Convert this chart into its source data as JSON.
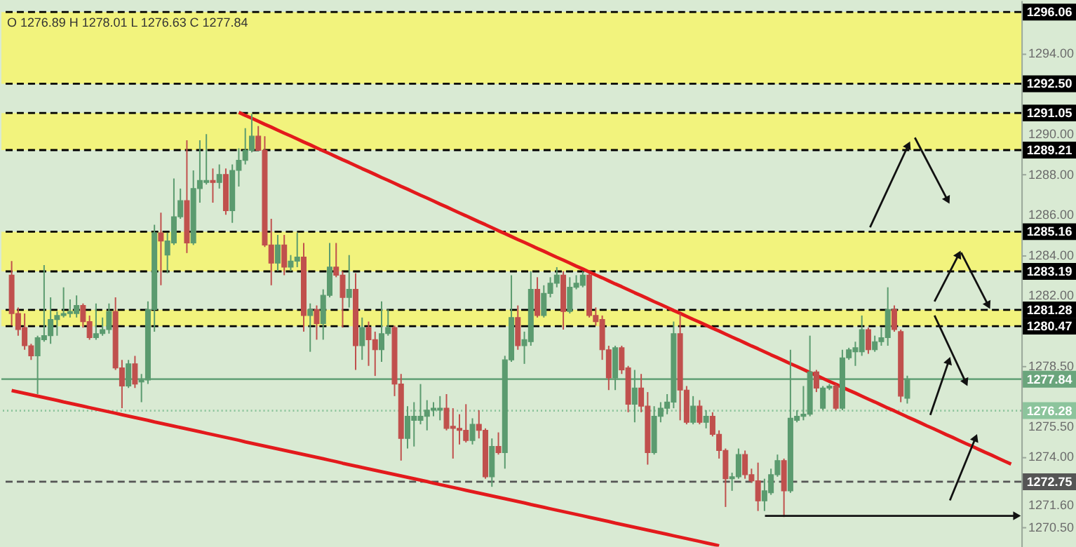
{
  "chart_data": {
    "type": "candlestick",
    "categories": [
      null,
      null,
      null,
      null,
      null,
      null,
      null,
      null,
      null,
      null,
      null,
      null,
      null,
      null,
      null,
      null,
      null,
      null,
      null,
      null,
      null,
      null,
      null,
      null,
      null,
      null,
      null,
      null,
      null,
      null,
      null,
      null,
      null,
      null,
      null,
      null,
      null,
      null,
      null,
      null,
      null,
      null,
      null,
      null,
      null,
      null,
      null,
      null,
      null,
      null,
      null,
      null,
      null,
      null,
      null,
      null,
      null,
      null,
      null,
      null,
      null,
      null,
      null,
      null,
      null,
      null,
      null,
      null,
      null,
      null,
      null,
      null,
      null,
      null,
      null,
      null,
      null,
      null,
      null,
      null,
      null,
      null,
      null,
      null,
      null,
      null,
      null,
      null,
      null,
      null,
      null,
      null,
      null,
      null,
      null,
      null,
      null,
      null,
      null,
      null,
      null,
      null,
      null,
      null,
      null,
      null,
      null,
      null,
      null,
      null,
      null,
      null,
      null,
      null,
      null,
      null,
      null,
      null,
      null,
      null,
      null,
      null,
      null,
      null,
      null,
      null,
      null,
      null,
      null,
      null,
      null,
      null,
      null,
      null,
      null,
      null,
      null,
      null,
      null,
      null,
      null,
      null,
      null,
      null,
      null,
      null,
      null,
      null,
      null,
      null,
      null,
      null,
      null,
      null,
      null
    ],
    "series": [
      {
        "ohlc": [
          [
            1283.0,
            1283.7,
            1280.5,
            1281.1
          ],
          [
            1281.1,
            1281.4,
            1280.0,
            1280.3
          ],
          [
            1280.4,
            1281.1,
            1279.3,
            1279.5
          ],
          [
            1279.5,
            1279.6,
            1278.8,
            1279.0
          ],
          [
            1279.0,
            1280.0,
            1277.1,
            1279.9
          ],
          [
            1279.8,
            1283.5,
            1279.7,
            1280.0
          ],
          [
            1280.0,
            1281.9,
            1279.6,
            1280.8
          ],
          [
            1280.8,
            1281.2,
            1280.0,
            1281.0
          ],
          [
            1281.0,
            1282.4,
            1280.9,
            1281.1
          ],
          [
            1281.1,
            1281.8,
            1280.9,
            1281.2
          ],
          [
            1281.1,
            1282.0,
            1280.9,
            1281.5
          ],
          [
            1281.5,
            1281.6,
            1280.4,
            1280.7
          ],
          [
            1280.7,
            1281.0,
            1279.8,
            1279.9
          ],
          [
            1279.9,
            1281.6,
            1279.8,
            1280.1
          ],
          [
            1280.1,
            1280.9,
            1280.0,
            1280.3
          ],
          [
            1280.3,
            1281.6,
            1280.1,
            1281.2
          ],
          [
            1281.2,
            1281.9,
            1278.3,
            1278.4
          ],
          [
            1278.4,
            1278.8,
            1276.4,
            1277.5
          ],
          [
            1277.5,
            1278.8,
            1277.4,
            1278.6
          ],
          [
            1278.6,
            1279.0,
            1277.4,
            1277.6
          ],
          [
            1277.7,
            1278.1,
            1276.7,
            1277.8
          ],
          [
            1277.8,
            1281.7,
            1277.6,
            1281.3
          ],
          [
            1281.3,
            1285.5,
            1280.2,
            1285.1
          ],
          [
            1285.1,
            1286.1,
            1282.5,
            1284.7
          ],
          [
            1284.0,
            1285.1,
            1283.1,
            1284.7
          ],
          [
            1284.6,
            1287.8,
            1284.5,
            1285.9
          ],
          [
            1285.9,
            1287.3,
            1285.8,
            1286.7
          ],
          [
            1286.7,
            1289.7,
            1284.1,
            1284.6
          ],
          [
            1284.6,
            1288.2,
            1284.5,
            1287.3
          ],
          [
            1287.3,
            1289.7,
            1286.6,
            1287.7
          ],
          [
            1287.6,
            1290.0,
            1287.5,
            1287.7
          ],
          [
            1287.7,
            1288.3,
            1286.6,
            1287.6
          ],
          [
            1287.6,
            1288.5,
            1287.3,
            1288.0
          ],
          [
            1288.0,
            1288.3,
            1286.0,
            1286.2
          ],
          [
            1286.2,
            1288.5,
            1285.6,
            1288.2
          ],
          [
            1288.2,
            1289.3,
            1287.4,
            1288.7
          ],
          [
            1288.7,
            1290.3,
            1288.5,
            1289.2
          ],
          [
            1289.2,
            1291.0,
            1289.1,
            1289.9
          ],
          [
            1289.9,
            1290.4,
            1289.2,
            1289.2
          ],
          [
            1289.2,
            1289.9,
            1284.4,
            1284.5
          ],
          [
            1284.5,
            1285.8,
            1282.5,
            1283.6
          ],
          [
            1283.6,
            1285.0,
            1283.2,
            1284.5
          ],
          [
            1284.5,
            1285.0,
            1283.0,
            1283.4
          ],
          [
            1283.4,
            1284.0,
            1283.2,
            1283.7
          ],
          [
            1283.7,
            1285.1,
            1283.4,
            1283.9
          ],
          [
            1283.9,
            1284.6,
            1280.2,
            1281.0
          ],
          [
            1281.0,
            1281.6,
            1279.2,
            1281.3
          ],
          [
            1281.3,
            1281.5,
            1279.8,
            1280.6
          ],
          [
            1280.6,
            1282.3,
            1279.8,
            1282.0
          ],
          [
            1282.0,
            1284.6,
            1281.9,
            1283.4
          ],
          [
            1283.4,
            1284.6,
            1282.9,
            1283.0
          ],
          [
            1283.0,
            1283.2,
            1280.4,
            1281.9
          ],
          [
            1281.9,
            1284.0,
            1281.4,
            1282.3
          ],
          [
            1282.3,
            1283.1,
            1278.3,
            1279.5
          ],
          [
            1279.5,
            1280.9,
            1278.8,
            1280.4
          ],
          [
            1280.4,
            1280.7,
            1278.5,
            1279.8
          ],
          [
            1279.8,
            1280.2,
            1278.0,
            1279.3
          ],
          [
            1279.3,
            1281.7,
            1278.7,
            1280.1
          ],
          [
            1280.1,
            1281.3,
            1280.0,
            1280.4
          ],
          [
            1280.4,
            1280.5,
            1277.0,
            1277.6
          ],
          [
            1277.6,
            1278.1,
            1273.8,
            1274.9
          ],
          [
            1274.9,
            1276.5,
            1274.4,
            1276.0
          ],
          [
            1275.8,
            1276.7,
            1274.5,
            1276.0
          ],
          [
            1275.8,
            1277.6,
            1275.6,
            1276.0
          ],
          [
            1276.0,
            1276.8,
            1275.3,
            1276.3
          ],
          [
            1276.3,
            1276.7,
            1276.0,
            1276.4
          ],
          [
            1276.3,
            1277.0,
            1275.8,
            1276.4
          ],
          [
            1276.4,
            1277.1,
            1275.3,
            1275.4
          ],
          [
            1275.5,
            1276.4,
            1273.9,
            1275.4
          ],
          [
            1275.4,
            1276.1,
            1274.6,
            1275.3
          ],
          [
            1275.3,
            1276.6,
            1274.7,
            1274.8
          ],
          [
            1274.8,
            1275.9,
            1274.6,
            1275.6
          ],
          [
            1275.6,
            1276.3,
            1274.9,
            1275.3
          ],
          [
            1275.3,
            1275.4,
            1272.9,
            1273.0
          ],
          [
            1273.0,
            1274.9,
            1272.5,
            1274.5
          ],
          [
            1274.5,
            1275.2,
            1274.1,
            1274.2
          ],
          [
            1274.2,
            1279.0,
            1273.4,
            1278.8
          ],
          [
            1278.8,
            1283.0,
            1278.7,
            1280.9
          ],
          [
            1280.9,
            1281.5,
            1279.3,
            1279.5
          ],
          [
            1279.5,
            1280.2,
            1278.6,
            1279.8
          ],
          [
            1279.7,
            1283.2,
            1279.5,
            1282.3
          ],
          [
            1282.3,
            1282.9,
            1280.9,
            1281.0
          ],
          [
            1281.0,
            1282.5,
            1280.9,
            1282.1
          ],
          [
            1282.1,
            1282.9,
            1281.9,
            1282.6
          ],
          [
            1282.6,
            1283.4,
            1282.4,
            1283.0
          ],
          [
            1283.0,
            1283.2,
            1280.3,
            1281.2
          ],
          [
            1281.2,
            1282.9,
            1281.1,
            1282.4
          ],
          [
            1282.4,
            1283.0,
            1282.3,
            1282.6
          ],
          [
            1282.5,
            1283.2,
            1282.4,
            1283.0
          ],
          [
            1283.0,
            1283.1,
            1280.9,
            1281.0
          ],
          [
            1281.0,
            1281.4,
            1280.5,
            1280.7
          ],
          [
            1280.8,
            1281.0,
            1278.8,
            1279.3
          ],
          [
            1279.3,
            1279.5,
            1277.3,
            1277.9
          ],
          [
            1277.9,
            1279.5,
            1277.3,
            1279.4
          ],
          [
            1279.4,
            1279.5,
            1278.1,
            1278.3
          ],
          [
            1278.4,
            1278.5,
            1276.2,
            1276.6
          ],
          [
            1276.6,
            1278.3,
            1275.7,
            1277.4
          ],
          [
            1277.4,
            1278.1,
            1276.2,
            1276.5
          ],
          [
            1276.5,
            1277.2,
            1273.6,
            1274.2
          ],
          [
            1274.2,
            1276.5,
            1274.1,
            1276.0
          ],
          [
            1276.0,
            1276.7,
            1275.7,
            1276.4
          ],
          [
            1276.4,
            1277.1,
            1276.1,
            1276.7
          ],
          [
            1276.7,
            1280.7,
            1276.4,
            1280.1
          ],
          [
            1280.1,
            1281.1,
            1275.8,
            1277.3
          ],
          [
            1277.3,
            1277.5,
            1275.6,
            1275.7
          ],
          [
            1275.7,
            1277.0,
            1275.6,
            1276.5
          ],
          [
            1276.5,
            1276.8,
            1275.6,
            1275.7
          ],
          [
            1275.7,
            1276.3,
            1275.4,
            1276.0
          ],
          [
            1276.0,
            1276.2,
            1275.0,
            1275.1
          ],
          [
            1275.1,
            1275.3,
            1273.9,
            1274.3
          ],
          [
            1274.3,
            1274.4,
            1271.5,
            1272.9
          ],
          [
            1272.9,
            1273.2,
            1272.3,
            1273.0
          ],
          [
            1273.0,
            1274.4,
            1272.9,
            1274.1
          ],
          [
            1274.1,
            1274.3,
            1272.9,
            1273.1
          ],
          [
            1273.1,
            1273.4,
            1272.7,
            1272.8
          ],
          [
            1272.8,
            1273.7,
            1271.3,
            1271.8
          ],
          [
            1271.8,
            1272.9,
            1271.3,
            1272.3
          ],
          [
            1272.2,
            1273.4,
            1272.1,
            1273.1
          ],
          [
            1273.1,
            1274.1,
            1273.0,
            1273.8
          ],
          [
            1273.8,
            1273.9,
            1271.0,
            1272.3
          ],
          [
            1272.3,
            1279.3,
            1272.2,
            1275.9
          ],
          [
            1275.8,
            1276.3,
            1275.7,
            1276.0
          ],
          [
            1276.0,
            1277.5,
            1275.8,
            1276.1
          ],
          [
            1276.1,
            1280.0,
            1276.0,
            1278.2
          ],
          [
            1278.2,
            1278.3,
            1277.2,
            1277.4
          ],
          [
            1276.4,
            1277.5,
            1276.3,
            1277.4
          ],
          [
            1277.4,
            1277.6,
            1277.3,
            1277.5
          ],
          [
            1277.5,
            1277.6,
            1276.3,
            1276.4
          ],
          [
            1276.4,
            1279.3,
            1276.3,
            1278.9
          ],
          [
            1278.9,
            1279.4,
            1278.8,
            1279.3
          ],
          [
            1279.2,
            1279.7,
            1278.5,
            1279.4
          ],
          [
            1279.2,
            1281.0,
            1279.0,
            1280.3
          ],
          [
            1280.3,
            1280.4,
            1279.1,
            1279.3
          ],
          [
            1279.3,
            1280.0,
            1279.2,
            1279.7
          ],
          [
            1279.7,
            1280.4,
            1279.5,
            1279.9
          ],
          [
            1279.9,
            1282.4,
            1279.5,
            1281.3
          ],
          [
            1281.3,
            1281.5,
            1280.2,
            1280.3
          ],
          [
            1280.2,
            1280.3,
            1276.7,
            1277.0
          ],
          [
            1276.89,
            1278.01,
            1276.63,
            1277.84
          ],
          null,
          null,
          null,
          null,
          null,
          null,
          null,
          null,
          null,
          null,
          null,
          null,
          null,
          null,
          null,
          null
        ],
        "colors": [
          "#c0504d",
          "#c0504d",
          "#c0504d",
          "#c0504d",
          "#5b9b6f",
          "#5b9b6f",
          "#5b9b6f",
          "#5b9b6f",
          "#5b9b6f",
          "#5b9b6f",
          "#5b9b6f",
          "#c0504d",
          "#c0504d",
          "#5b9b6f",
          "#5b9b6f",
          "#5b9b6f",
          "#c0504d",
          "#c0504d",
          "#5b9b6f",
          "#c0504d",
          "#5b9b6f",
          "#5b9b6f",
          "#5b9b6f",
          "#c0504d",
          "#5b9b6f",
          "#5b9b6f",
          "#5b9b6f",
          "#c0504d",
          "#5b9b6f",
          "#5b9b6f",
          "#5b9b6f",
          "#c0504d",
          "#5b9b6f",
          "#c0504d",
          "#5b9b6f",
          "#5b9b6f",
          "#5b9b6f",
          "#5b9b6f",
          "#c0504d",
          "#c0504d",
          "#c0504d",
          "#5b9b6f",
          "#c0504d",
          "#5b9b6f",
          "#5b9b6f",
          "#c0504d",
          "#5b9b6f",
          "#c0504d",
          "#5b9b6f",
          "#5b9b6f",
          "#c0504d",
          "#c0504d",
          "#5b9b6f",
          "#c0504d",
          "#5b9b6f",
          "#c0504d",
          "#c0504d",
          "#5b9b6f",
          "#5b9b6f",
          "#c0504d",
          "#c0504d",
          "#5b9b6f",
          "#5b9b6f",
          "#5b9b6f",
          "#5b9b6f",
          "#5b9b6f",
          "#5b9b6f",
          "#c0504d",
          "#c0504d",
          "#c0504d",
          "#c0504d",
          "#5b9b6f",
          "#c0504d",
          "#c0504d",
          "#5b9b6f",
          "#c0504d",
          "#5b9b6f",
          "#5b9b6f",
          "#c0504d",
          "#5b9b6f",
          "#5b9b6f",
          "#c0504d",
          "#5b9b6f",
          "#5b9b6f",
          "#5b9b6f",
          "#c0504d",
          "#5b9b6f",
          "#5b9b6f",
          "#5b9b6f",
          "#c0504d",
          "#c0504d",
          "#c0504d",
          "#c0504d",
          "#5b9b6f",
          "#c0504d",
          "#c0504d",
          "#5b9b6f",
          "#c0504d",
          "#c0504d",
          "#5b9b6f",
          "#5b9b6f",
          "#5b9b6f",
          "#5b9b6f",
          "#c0504d",
          "#c0504d",
          "#5b9b6f",
          "#c0504d",
          "#5b9b6f",
          "#c0504d",
          "#c0504d",
          "#c0504d",
          "#5b9b6f",
          "#5b9b6f",
          "#c0504d",
          "#c0504d",
          "#c0504d",
          "#5b9b6f",
          "#5b9b6f",
          "#5b9b6f",
          "#c0504d",
          "#5b9b6f",
          "#5b9b6f",
          "#5b9b6f",
          "#5b9b6f",
          "#c0504d",
          "#5b9b6f",
          "#5b9b6f",
          "#c0504d",
          "#5b9b6f",
          "#5b9b6f",
          "#5b9b6f",
          "#5b9b6f",
          "#c0504d",
          "#5b9b6f",
          "#5b9b6f",
          "#5b9b6f",
          "#c0504d",
          "#c0504d",
          "#5b9b6f",
          null,
          null,
          null,
          null,
          null,
          null,
          null,
          null,
          null,
          null,
          null,
          null,
          null,
          null,
          null,
          null
        ]
      },
      {
        "type": "line",
        "color": "#e31a1c",
        "values": [
          null,
          null,
          null,
          null,
          null,
          null,
          null,
          null,
          null,
          null,
          null,
          null,
          null,
          null,
          null,
          null,
          null,
          null,
          null,
          null,
          null,
          null,
          null,
          null,
          null,
          null,
          null,
          null,
          null,
          null,
          null,
          null,
          null,
          null,
          null,
          1291.08,
          1290.93,
          1290.79,
          1290.64,
          1290.49,
          1290.35,
          1290.2,
          1290.05,
          1289.91,
          1289.76,
          1289.61,
          1289.47,
          1289.32,
          1289.17,
          1289.03,
          1288.88,
          1288.73,
          1288.59,
          1288.44,
          1288.29,
          1288.15,
          1288.0,
          1287.85,
          1287.71,
          1287.56,
          1287.41,
          1287.27,
          1287.12,
          1286.97,
          1286.83,
          1286.68,
          1286.53,
          1286.39,
          1286.24,
          1286.09,
          1285.95,
          1285.8,
          1285.65,
          1285.51,
          1285.36,
          1285.21,
          1285.07,
          1284.92,
          1284.77,
          1284.63,
          1284.48,
          1284.33,
          1284.19,
          1284.04,
          1283.89,
          1283.75,
          1283.6,
          1283.45,
          1283.31,
          1283.16,
          1283.01,
          1282.87,
          1282.72,
          1282.57,
          1282.43,
          1282.28,
          1282.13,
          1281.99,
          1281.84,
          1281.69,
          1281.55,
          1281.4,
          1281.25,
          1281.11,
          1280.96,
          1280.81,
          1280.67,
          1280.52,
          1280.37,
          1280.23,
          1280.08,
          1279.93,
          1279.79,
          1279.64,
          1279.49,
          1279.35,
          1279.2,
          1279.05,
          1278.91,
          1278.76,
          1278.61,
          1278.47,
          1278.32,
          1278.17,
          1278.03,
          1277.88,
          1277.73,
          1277.59,
          1277.44,
          1277.29,
          1277.15,
          1277.0,
          1276.85,
          1276.71,
          1276.56,
          1276.41,
          1276.27,
          1276.12,
          1275.97,
          1275.83,
          1275.68,
          1275.53,
          1275.39,
          1275.24,
          1275.09,
          1274.95,
          1274.8,
          1274.65,
          1274.51,
          1274.36,
          1274.21,
          1274.07,
          1273.92,
          1273.77,
          1273.63
        ]
      },
      {
        "type": "line",
        "color": "#e31a1c",
        "values": [
          1277.28,
          1277.21,
          1277.14,
          1277.07,
          1277.0,
          1276.93,
          1276.86,
          1276.79,
          1276.71,
          1276.64,
          1276.57,
          1276.5,
          1276.43,
          1276.36,
          1276.29,
          1276.22,
          1276.15,
          1276.08,
          1276.01,
          1275.94,
          1275.87,
          1275.8,
          1275.72,
          1275.65,
          1275.58,
          1275.51,
          1275.44,
          1275.37,
          1275.3,
          1275.23,
          1275.16,
          1275.09,
          1275.02,
          1274.95,
          1274.88,
          1274.81,
          1274.73,
          1274.66,
          1274.59,
          1274.52,
          1274.45,
          1274.38,
          1274.31,
          1274.24,
          1274.17,
          1274.1,
          1274.03,
          1273.96,
          1273.89,
          1273.82,
          1273.75,
          1273.67,
          1273.6,
          1273.53,
          1273.46,
          1273.39,
          1273.32,
          1273.25,
          1273.18,
          1273.11,
          1273.04,
          1272.97,
          1272.9,
          1272.83,
          1272.76,
          1272.68,
          1272.61,
          1272.54,
          1272.47,
          1272.4,
          1272.33,
          1272.26,
          1272.19,
          1272.12,
          1272.05,
          1271.98,
          1271.91,
          1271.84,
          1271.77,
          1271.7,
          1271.62,
          1271.55,
          1271.48,
          1271.41,
          1271.34,
          1271.27,
          1271.2,
          1271.13,
          1271.06,
          1270.99,
          1270.92,
          1270.85,
          1270.78,
          1270.7,
          1270.63,
          1270.56,
          1270.49,
          1270.42,
          1270.35,
          1270.28,
          1270.21,
          1270.14,
          1270.07,
          1270.0,
          1269.93,
          1269.86,
          1269.79,
          1269.72,
          1269.65,
          1269.57,
          null,
          null,
          null,
          null,
          null,
          null,
          null,
          null,
          null,
          null,
          null,
          null,
          null,
          null,
          null,
          null,
          null,
          null,
          null,
          null,
          null,
          null,
          null,
          null,
          null,
          null,
          null,
          null,
          null,
          null,
          null,
          null,
          null,
          null,
          null,
          null,
          null,
          null,
          null,
          null,
          null,
          null,
          null,
          null,
          null
        ]
      }
    ],
    "ylim": [
      1269.53,
      1296.64
    ],
    "yticks": [
      {
        "value": 1294,
        "label": "1294.00"
      },
      {
        "value": 1290,
        "label": "1290.00"
      },
      {
        "value": 1288,
        "label": "1288.00"
      },
      {
        "value": 1286,
        "label": "1286.00"
      },
      {
        "value": 1284,
        "label": "1284.00"
      },
      {
        "value": 1282,
        "label": "1282.00"
      },
      {
        "value": 1278.5,
        "label": "1278.50"
      },
      {
        "value": 1275.5,
        "label": "1275.50"
      },
      {
        "value": 1274,
        "label": "1274.00"
      },
      {
        "value": 1271.6,
        "label": "1271.60"
      },
      {
        "value": 1270.5,
        "label": "1270.50"
      }
    ],
    "tick_labels": "y",
    "bands": [
      {
        "axis": "y",
        "from": 1292.5,
        "to": 1296.06,
        "color": "#f3f378"
      },
      {
        "axis": "y",
        "from": 1289.21,
        "to": 1291.05,
        "color": "#f3f378"
      },
      {
        "axis": "y",
        "from": 1283.19,
        "to": 1285.16,
        "color": "#f3f378"
      },
      {
        "axis": "y",
        "from": 1280.47,
        "to": 1281.28,
        "color": "#f3f378"
      }
    ],
    "ref_lines": [
      {
        "axis": "y",
        "value": 1296.06,
        "label": "1296.06",
        "color": "#000000",
        "line_style": "dashed"
      },
      {
        "axis": "y",
        "value": 1292.5,
        "label": "1292.50",
        "color": "#000000",
        "line_style": "dashed"
      },
      {
        "axis": "y",
        "value": 1291.05,
        "label": "1291.05",
        "color": "#000000",
        "line_style": "dashed"
      },
      {
        "axis": "y",
        "value": 1289.21,
        "label": "1289.21",
        "color": "#000000",
        "line_style": "dashed"
      },
      {
        "axis": "y",
        "value": 1285.16,
        "label": "1285.16",
        "color": "#000000",
        "line_style": "dashed"
      },
      {
        "axis": "y",
        "value": 1283.19,
        "label": "1283.19",
        "color": "#000000",
        "line_style": "dashed"
      },
      {
        "axis": "y",
        "value": 1281.28,
        "label": "1281.28",
        "color": "#000000",
        "line_style": "dashed"
      },
      {
        "axis": "y",
        "value": 1280.47,
        "label": "1280.47",
        "color": "#000000",
        "line_style": "dashed"
      },
      {
        "axis": "y",
        "value": 1277.84,
        "label": "1277.84",
        "color": "#6aa57c",
        "line_style": "solid"
      },
      {
        "axis": "y",
        "value": 1276.28,
        "label": "1276.28",
        "color": "#8cc49c",
        "line_style": "dotted"
      },
      {
        "axis": "y",
        "value": 1272.75,
        "label": "1272.75",
        "color": "#555555",
        "line_style": "dashed"
      }
    ],
    "annotations": [
      "O 1276.89 H 1278.01 L 1276.63 C 1277.84"
    ],
    "grid": false
  }
}
